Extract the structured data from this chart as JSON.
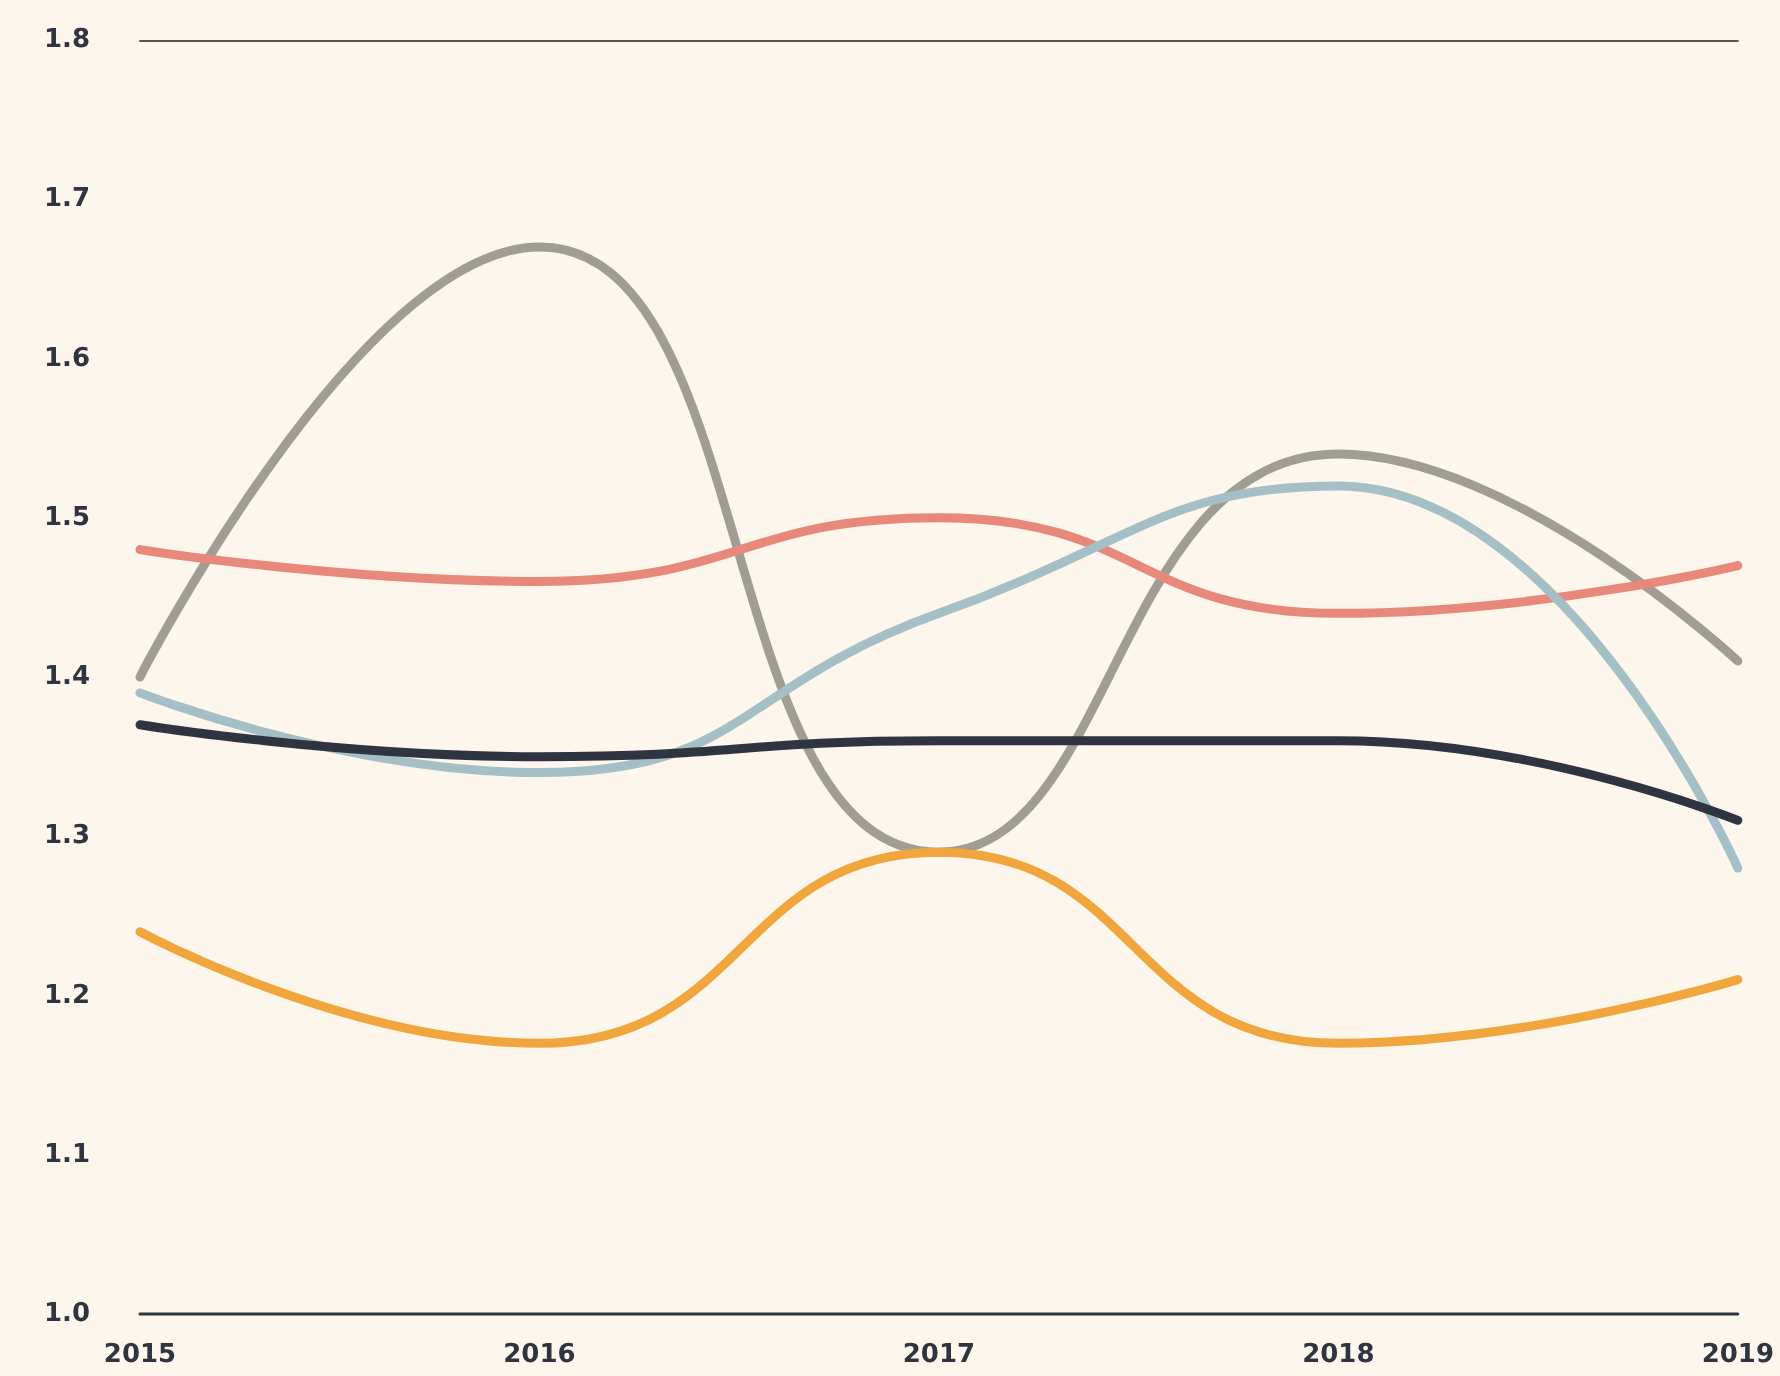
{
  "chart_data": {
    "type": "line",
    "categories": [
      "2015",
      "2016",
      "2017",
      "2018",
      "2019"
    ],
    "series": [
      {
        "color": "#a09d94",
        "values": [
          1.4,
          1.67,
          1.29,
          1.54,
          1.41
        ]
      },
      {
        "color": "#e8887a",
        "values": [
          1.48,
          1.46,
          1.5,
          1.44,
          1.47
        ]
      },
      {
        "color": "#a5bfc6",
        "values": [
          1.39,
          1.34,
          1.44,
          1.52,
          1.28
        ]
      },
      {
        "color": "#2e3540",
        "values": [
          1.37,
          1.35,
          1.36,
          1.36,
          1.31
        ]
      },
      {
        "color": "#f0a63c",
        "values": [
          1.24,
          1.17,
          1.29,
          1.17,
          1.21
        ]
      }
    ],
    "ylim": [
      1.0,
      1.8
    ],
    "yticks": [
      {
        "value": 1,
        "label": "1.0"
      },
      1.1,
      1.2,
      1.3,
      1.4,
      1.5,
      1.6,
      1.7,
      1.8
    ],
    "grid": false,
    "marker": "none",
    "line_style": "solid"
  }
}
